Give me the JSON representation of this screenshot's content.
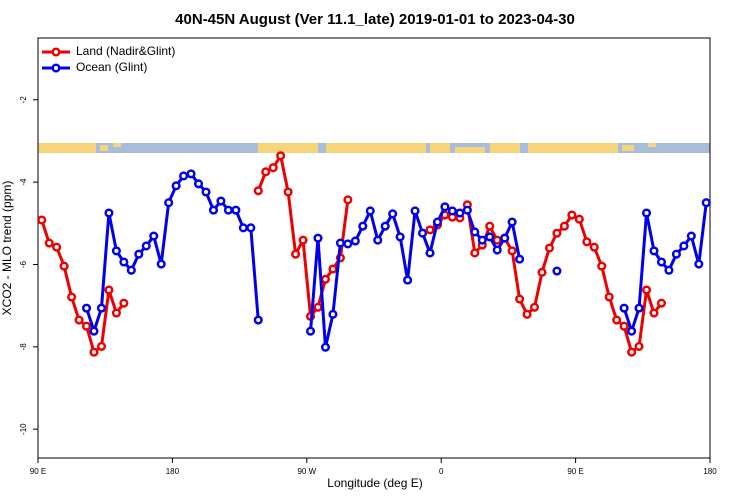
{
  "chart_data": {
    "type": "line",
    "title": "40N-45N August (Ver 11.1_late)   2019-01-01 to 2023-04-30",
    "x_label": "Longitude (deg E)",
    "y_label": "XCO2 - MLO trend (ppm)",
    "xlim": [
      90,
      540
    ],
    "ylim": [
      -10.7,
      -0.5
    ],
    "xticks": [
      {
        "value": 90,
        "label": "90 E"
      },
      180,
      {
        "value": 270,
        "label": "90 W"
      },
      {
        "value": 360,
        "label": "0"
      },
      {
        "value": 450,
        "label": "90 E"
      },
      {
        "value": 540,
        "label": "180"
      }
    ],
    "yticks": [
      -2,
      -4,
      -6,
      -8,
      -10
    ],
    "legend": "top-left",
    "x": [
      92.5,
      97.5,
      102.5,
      107.5,
      112.5,
      117.5,
      122.5,
      127.5,
      132.5,
      137.5,
      142.5,
      147.5,
      152.5,
      157.5,
      162.5,
      167.5,
      172.5,
      177.5,
      182.5,
      187.5,
      192.5,
      197.5,
      202.5,
      207.5,
      212.5,
      217.5,
      222.5,
      227.5,
      232.5,
      237.5,
      242.5,
      247.5,
      252.5,
      257.5,
      262.5,
      267.5,
      272.5,
      277.5,
      282.5,
      287.5,
      292.5,
      297.5,
      302.5,
      307.5,
      312.5,
      317.5,
      322.5,
      327.5,
      332.5,
      337.5,
      342.5,
      347.5,
      352.5,
      357.5,
      362.5,
      367.5,
      372.5,
      377.5,
      382.5,
      387.5,
      392.5,
      397.5,
      402.5,
      407.5,
      412.5,
      417.5,
      422.5,
      427.5,
      432.5,
      437.5,
      442.5,
      447.5,
      452.5,
      457.5,
      462.5,
      467.5,
      472.5,
      477.5,
      482.5,
      487.5,
      492.5,
      497.5,
      502.5,
      507.5,
      512.5,
      517.5,
      522.5,
      527.5,
      532.5,
      537.5
    ],
    "series": [
      {
        "name": "Land (Nadir&Glint)",
        "color": "#ee0000",
        "values": [
          -4.92,
          -5.48,
          -5.58,
          -6.04,
          -6.79,
          -7.35,
          -7.5,
          -8.13,
          -7.99,
          -6.62,
          -7.18,
          -6.94,
          null,
          null,
          null,
          null,
          null,
          null,
          null,
          null,
          null,
          null,
          null,
          null,
          null,
          null,
          null,
          null,
          null,
          -4.21,
          -3.75,
          -3.65,
          -3.36,
          -4.24,
          -5.75,
          -5.41,
          -7.26,
          -7.04,
          -6.36,
          -6.11,
          -5.84,
          -4.43,
          null,
          null,
          null,
          null,
          null,
          null,
          null,
          null,
          null,
          null,
          -5.16,
          -5.04,
          -4.8,
          -4.85,
          -4.87,
          -4.55,
          -5.72,
          -5.53,
          -5.07,
          -5.41,
          -5.36,
          -5.67,
          -6.84,
          -7.21,
          -7.04,
          -6.19,
          -5.6,
          -5.24,
          -5.07,
          -4.8,
          -4.9,
          -5.45,
          -5.58,
          -6.04,
          -6.79,
          -7.35,
          -7.5,
          -8.13,
          -7.99,
          -6.62,
          -7.18,
          -6.94,
          null,
          null,
          null,
          null,
          null,
          null
        ]
      },
      {
        "name": "Ocean (Glint)",
        "color": "#0000ee",
        "values": [
          null,
          null,
          null,
          null,
          null,
          null,
          -7.06,
          -7.62,
          -7.06,
          -4.75,
          -5.67,
          -5.94,
          -6.14,
          -5.75,
          -5.55,
          -5.31,
          -5.99,
          -4.5,
          -4.09,
          -3.85,
          -3.8,
          -4.04,
          -4.24,
          -4.68,
          -4.46,
          -4.68,
          -4.68,
          -5.11,
          -5.11,
          -7.35,
          null,
          null,
          null,
          null,
          null,
          null,
          -7.62,
          -5.36,
          -8.01,
          -7.21,
          -5.48,
          -5.5,
          -5.43,
          -5.07,
          -4.7,
          -5.41,
          -5.07,
          -4.77,
          -5.33,
          -6.38,
          -4.7,
          -5.24,
          -5.72,
          -4.97,
          -4.6,
          -4.7,
          -4.75,
          -4.68,
          -5.21,
          -5.41,
          -5.33,
          -5.65,
          -5.36,
          -4.97,
          -5.87,
          null,
          null,
          null,
          null,
          -6.16,
          null,
          null,
          null,
          null,
          null,
          null,
          null,
          null,
          -7.06,
          -7.62,
          -7.06,
          -4.75,
          -5.67,
          -5.94,
          -6.14,
          -5.75,
          -5.55,
          -5.31,
          -5.99,
          -4.5
        ]
      }
    ]
  }
}
